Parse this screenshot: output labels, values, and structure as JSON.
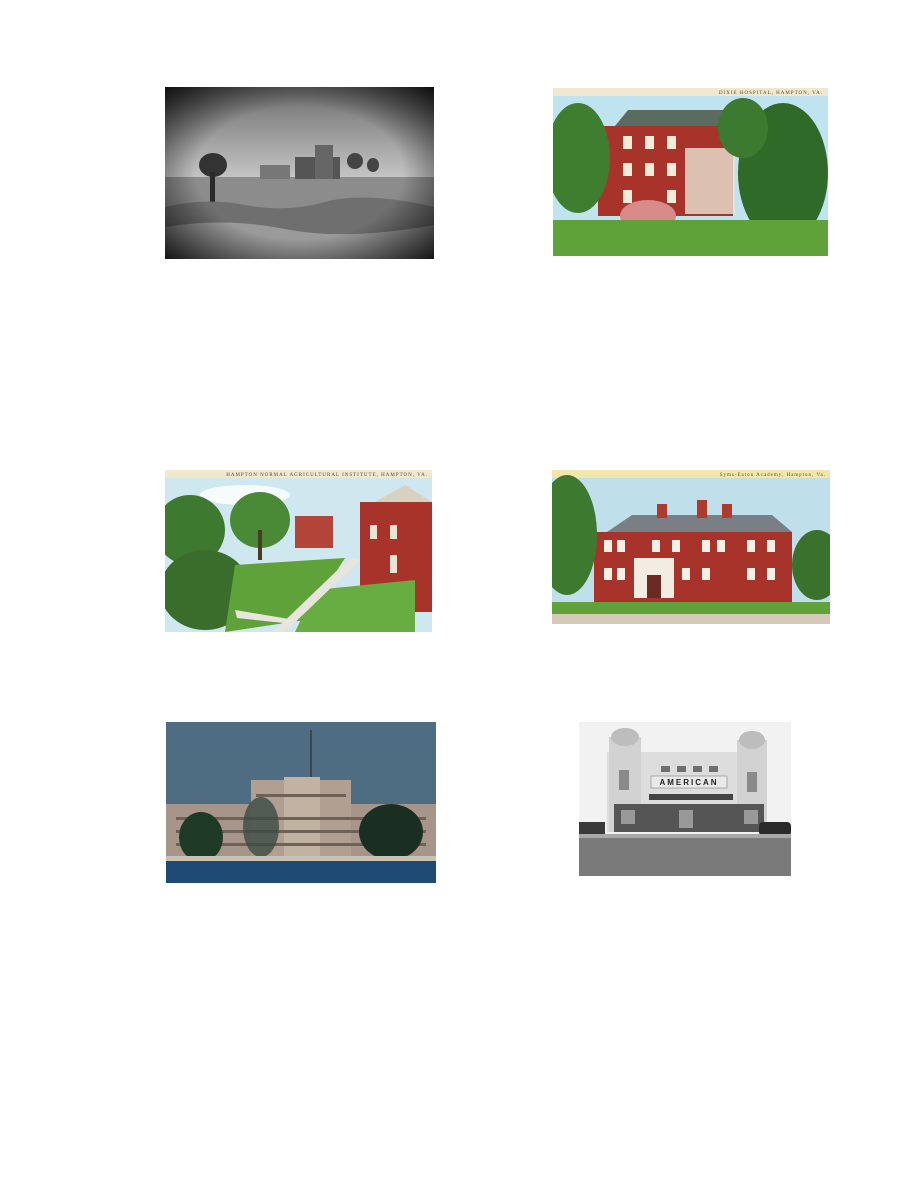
{
  "photos": [
    {
      "id": "ruins-photo",
      "caption": ""
    },
    {
      "id": "house-postcard",
      "caption": "DIXIE HOSPITAL, HAMPTON, VA."
    },
    {
      "id": "campus-postcard",
      "caption": "HAMPTON NORMAL AGRICULTURAL INSTITUTE, HAMPTON, VA."
    },
    {
      "id": "academy-postcard",
      "caption": "Syms-Eaton Academy, Hampton, Va."
    },
    {
      "id": "hospital-photo",
      "caption": ""
    },
    {
      "id": "theater-photo",
      "caption": "AMERICAN"
    }
  ],
  "colors": {
    "page_background": "#ffffff",
    "brick_red": "#a8332a",
    "postcard_sky": "#bfe3ef",
    "lawn_green": "#5fa23a"
  }
}
